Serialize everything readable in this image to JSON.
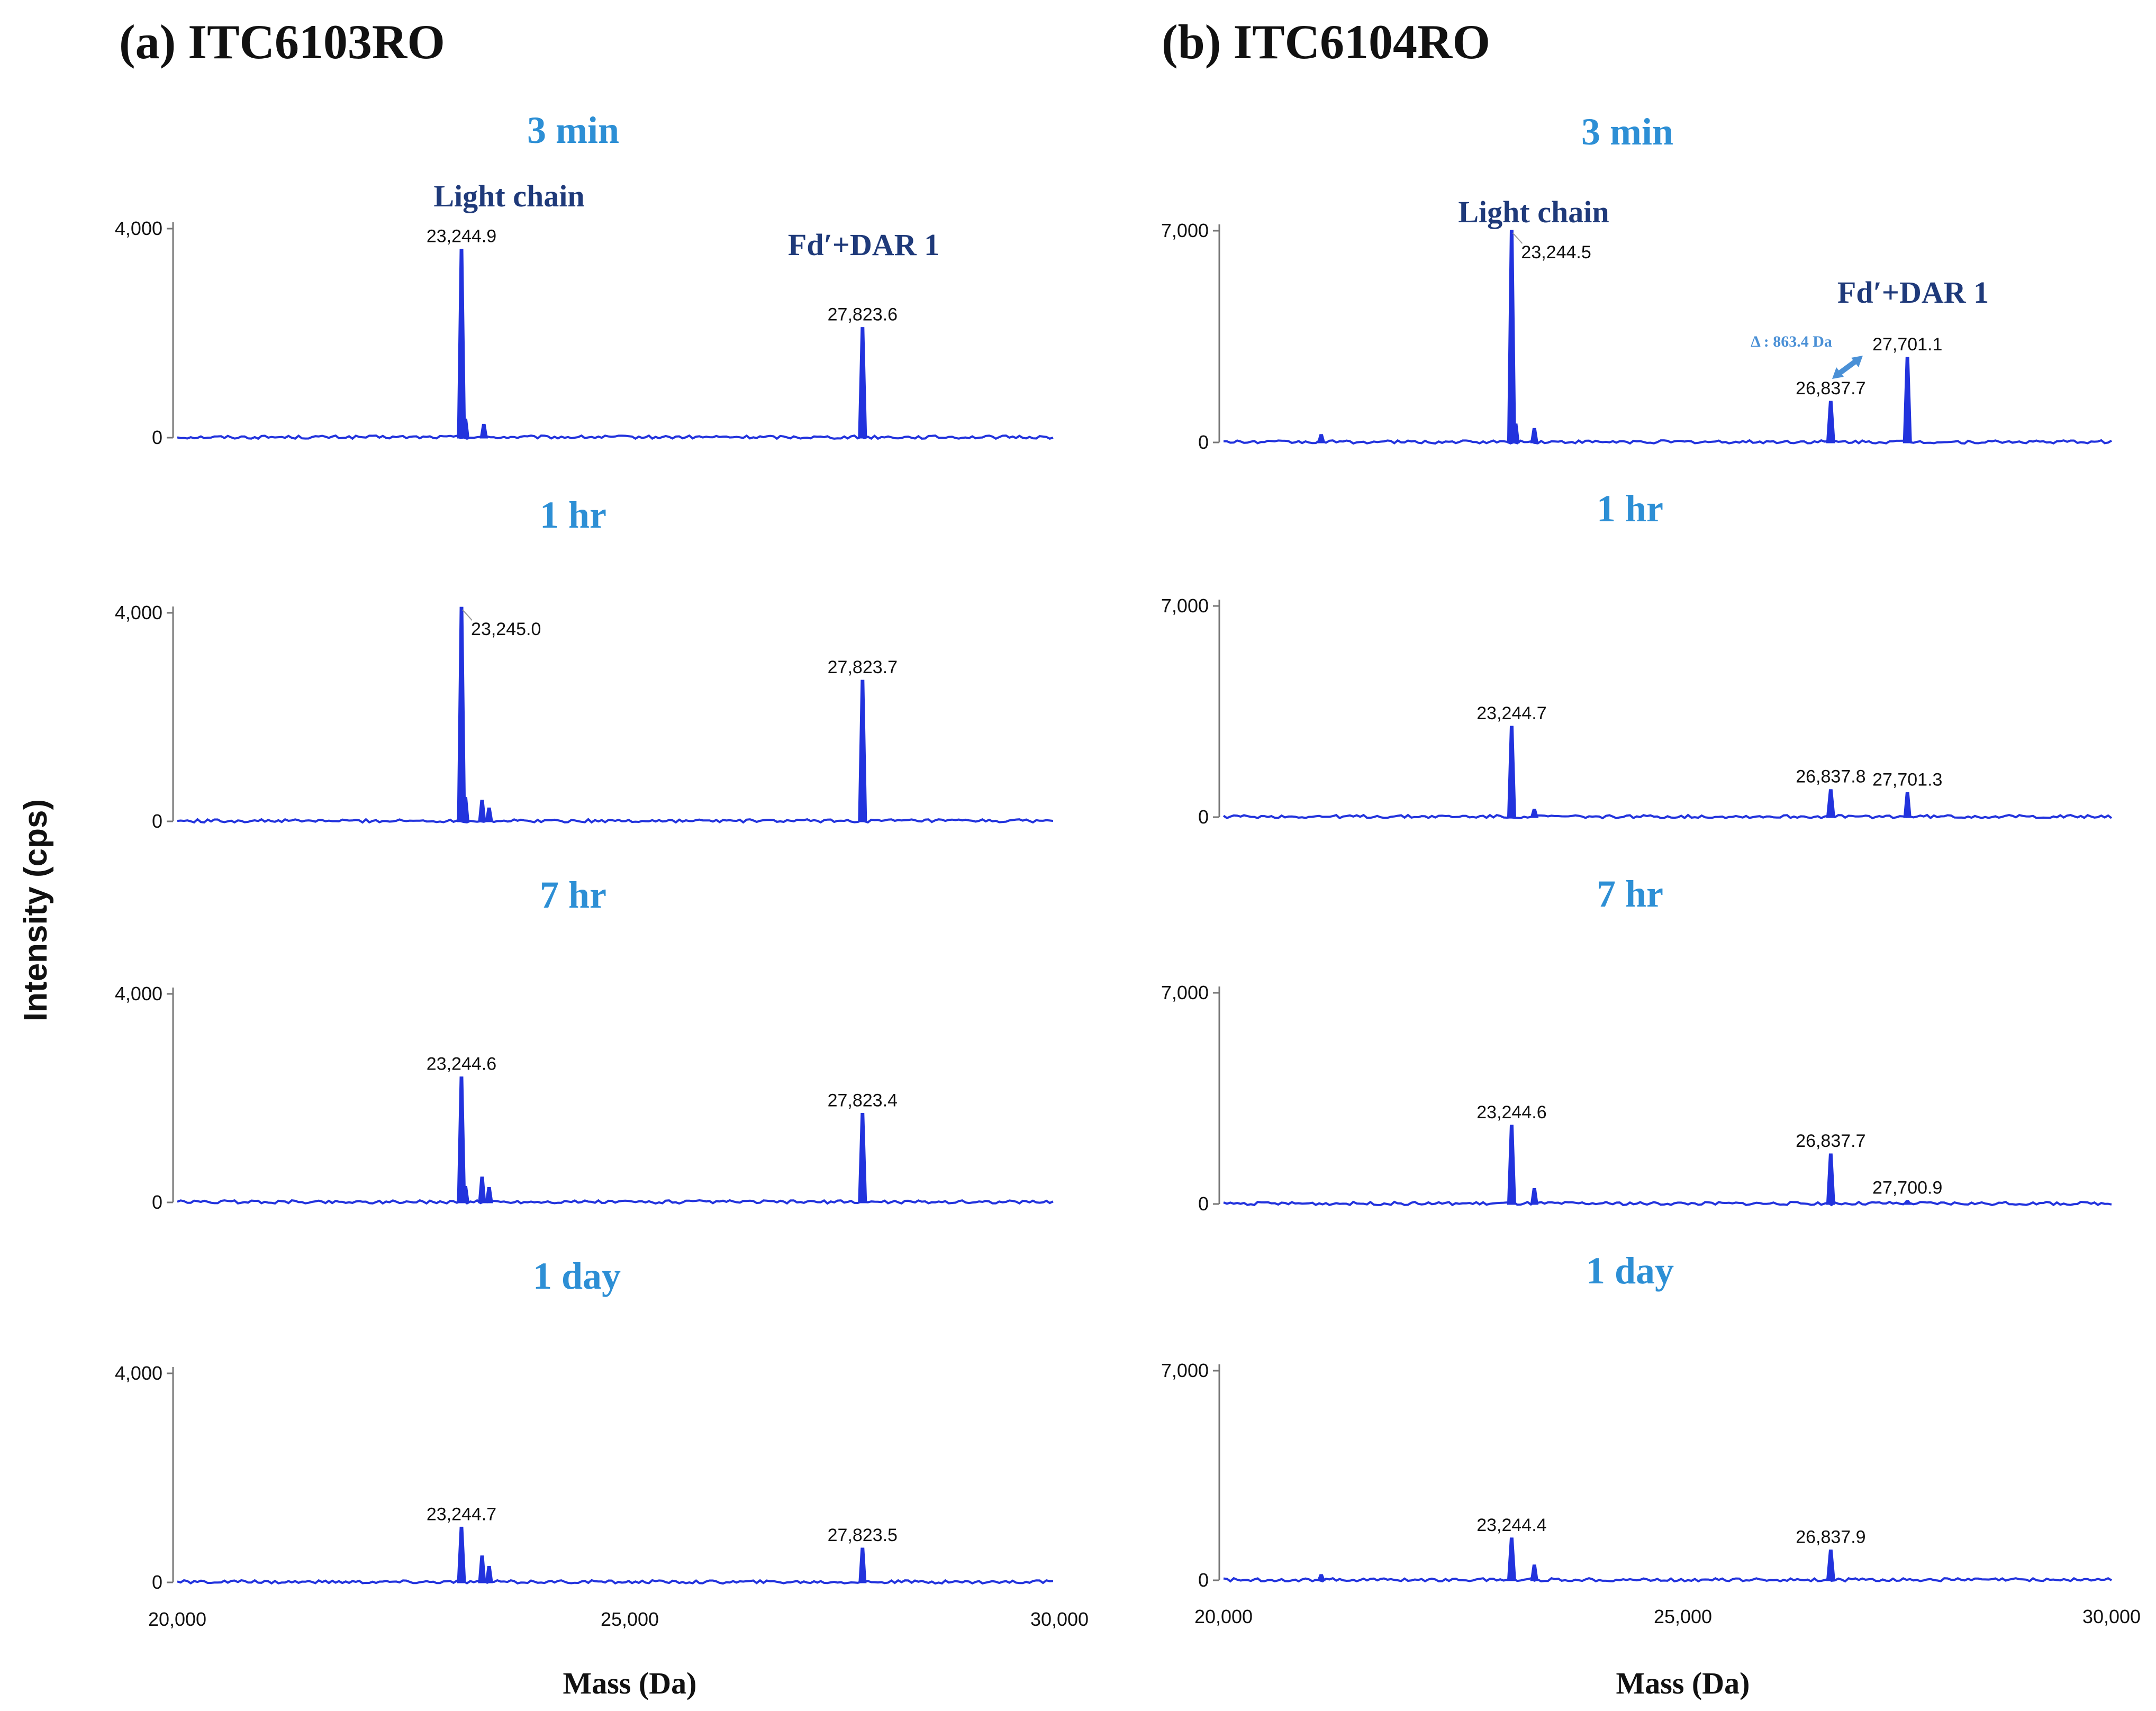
{
  "figure": {
    "ylabel": "Intensity (cps)",
    "xlabel": "Mass (Da)",
    "x_ticks": [
      "20,000",
      "25,000",
      "30,000"
    ],
    "colors": {
      "trace": "#2233dd",
      "time_label": "#2d8fd5",
      "annotation": "#1f3a7a",
      "delta": "#4a90d6"
    }
  },
  "panels": [
    {
      "title": "(a) ITC6103RO",
      "y_tick_top": "4,000",
      "y_tick_zero": "0",
      "light_chain_label": "Light chain",
      "fd_label": "Fd′+DAR 1",
      "delta_label": ""
    },
    {
      "title": "(b) ITC6104RO",
      "y_tick_top": "7,000",
      "y_tick_zero": "0",
      "light_chain_label": "Light chain",
      "fd_label": "Fd′+DAR 1",
      "delta_label": "Δ : 863.4 Da"
    }
  ],
  "chart_data": [
    {
      "type": "line",
      "title": "(a) ITC6103RO — 3 min",
      "xlabel": "Mass (Da)",
      "ylabel": "Intensity (cps)",
      "xlim": [
        20000,
        30000
      ],
      "ylim": [
        0,
        4000
      ],
      "peaks": [
        {
          "x": 23244.9,
          "y": 3600,
          "label": "23,244.9"
        },
        {
          "x": 23290,
          "y": 350,
          "label": ""
        },
        {
          "x": 23500,
          "y": 250,
          "label": ""
        },
        {
          "x": 27823.6,
          "y": 2100,
          "label": "27,823.6"
        }
      ]
    },
    {
      "type": "line",
      "title": "(a) ITC6103RO — 1 hr",
      "xlabel": "Mass (Da)",
      "ylabel": "Intensity (cps)",
      "xlim": [
        20000,
        30000
      ],
      "ylim": [
        0,
        4000
      ],
      "peaks": [
        {
          "x": 23245.0,
          "y": 4100,
          "label": "23,245.0"
        },
        {
          "x": 23290,
          "y": 450,
          "label": ""
        },
        {
          "x": 23480,
          "y": 400,
          "label": ""
        },
        {
          "x": 23560,
          "y": 250,
          "label": ""
        },
        {
          "x": 27823.7,
          "y": 2700,
          "label": "27,823.7"
        }
      ]
    },
    {
      "type": "line",
      "title": "(a) ITC6103RO — 7 hr",
      "xlabel": "Mass (Da)",
      "ylabel": "Intensity (cps)",
      "xlim": [
        20000,
        30000
      ],
      "ylim": [
        0,
        4000
      ],
      "peaks": [
        {
          "x": 23244.6,
          "y": 2400,
          "label": "23,244.6"
        },
        {
          "x": 23290,
          "y": 300,
          "label": ""
        },
        {
          "x": 23480,
          "y": 480,
          "label": ""
        },
        {
          "x": 23560,
          "y": 280,
          "label": ""
        },
        {
          "x": 27823.4,
          "y": 1700,
          "label": "27,823.4"
        }
      ]
    },
    {
      "type": "line",
      "title": "(a) ITC6103RO — 1 day",
      "xlabel": "Mass (Da)",
      "ylabel": "Intensity (cps)",
      "xlim": [
        20000,
        30000
      ],
      "ylim": [
        0,
        4000
      ],
      "peaks": [
        {
          "x": 23244.7,
          "y": 1050,
          "label": "23,244.7"
        },
        {
          "x": 23480,
          "y": 500,
          "label": ""
        },
        {
          "x": 23560,
          "y": 300,
          "label": ""
        },
        {
          "x": 27823.5,
          "y": 650,
          "label": "27,823.5"
        }
      ]
    },
    {
      "type": "line",
      "title": "(b) ITC6104RO — 3 min",
      "xlabel": "Mass (Da)",
      "ylabel": "Intensity (cps)",
      "xlim": [
        20000,
        30000
      ],
      "ylim": [
        0,
        7000
      ],
      "peaks": [
        {
          "x": 21100,
          "y": 250,
          "label": ""
        },
        {
          "x": 23244.5,
          "y": 7000,
          "label": "23,244.5"
        },
        {
          "x": 23290,
          "y": 600,
          "label": ""
        },
        {
          "x": 23500,
          "y": 450,
          "label": ""
        },
        {
          "x": 26837.7,
          "y": 1350,
          "label": "26,837.7"
        },
        {
          "x": 27701.1,
          "y": 2800,
          "label": "27,701.1"
        }
      ]
    },
    {
      "type": "line",
      "title": "(b) ITC6104RO — 1 hr",
      "xlabel": "Mass (Da)",
      "ylabel": "Intensity (cps)",
      "xlim": [
        20000,
        30000
      ],
      "ylim": [
        0,
        7000
      ],
      "peaks": [
        {
          "x": 23244.7,
          "y": 3000,
          "label": "23,244.7"
        },
        {
          "x": 23500,
          "y": 250,
          "label": ""
        },
        {
          "x": 26837.8,
          "y": 900,
          "label": "26,837.8"
        },
        {
          "x": 27701.3,
          "y": 800,
          "label": "27,701.3"
        }
      ]
    },
    {
      "type": "line",
      "title": "(b) ITC6104RO — 7 hr",
      "xlabel": "Mass (Da)",
      "ylabel": "Intensity (cps)",
      "xlim": [
        20000,
        30000
      ],
      "ylim": [
        0,
        7000
      ],
      "peaks": [
        {
          "x": 23244.6,
          "y": 2600,
          "label": "23,244.6"
        },
        {
          "x": 23500,
          "y": 500,
          "label": ""
        },
        {
          "x": 26837.7,
          "y": 1650,
          "label": "26,837.7"
        },
        {
          "x": 27700.9,
          "y": 100,
          "label": "27,700.9"
        }
      ]
    },
    {
      "type": "line",
      "title": "(b) ITC6104RO — 1 day",
      "xlabel": "Mass (Da)",
      "ylabel": "Intensity (cps)",
      "xlim": [
        20000,
        30000
      ],
      "ylim": [
        0,
        7000
      ],
      "peaks": [
        {
          "x": 21100,
          "y": 180,
          "label": ""
        },
        {
          "x": 23244.4,
          "y": 1400,
          "label": "23,244.4"
        },
        {
          "x": 23500,
          "y": 500,
          "label": ""
        },
        {
          "x": 26837.9,
          "y": 1000,
          "label": "26,837.9"
        }
      ]
    }
  ],
  "time_labels": [
    "3 min",
    "1 hr",
    "7 hr",
    "1 day"
  ]
}
